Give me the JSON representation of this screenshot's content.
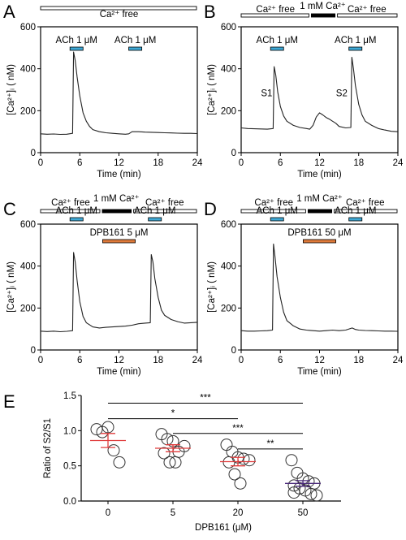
{
  "colors": {
    "ach_bar": "#3fa9d6",
    "dpb_bar": "#e07a3a",
    "calcium_bar": "#000000",
    "ca_free_bar": "#ffffff",
    "trace": "#222222",
    "mean_red": "#e03c3c",
    "mean_purple": "#4a2a7a"
  },
  "chart_data": [
    {
      "panel": "A",
      "type": "line",
      "xlabel": "Time (min)",
      "ylabel": "[Ca²⁺]ᵢ ( nM)",
      "xlim": [
        0,
        24
      ],
      "ylim": [
        0,
        600
      ],
      "xticks": [
        "0",
        "6",
        "12",
        "18",
        "24"
      ],
      "yticks": [
        "0",
        "200",
        "400",
        "600"
      ],
      "top_bars": [
        {
          "label": "Ca²⁺ free",
          "style": "ca_free",
          "start": 0,
          "end": 24
        }
      ],
      "treatments": [
        {
          "label": "ACh 1 μM",
          "color": "ach",
          "start": 4.5,
          "end": 6.5
        },
        {
          "label": "ACh 1 μM",
          "color": "ach",
          "start": 13.5,
          "end": 15.5
        }
      ],
      "trace": {
        "x": [
          0,
          1,
          2,
          3,
          4,
          4.9,
          5.05,
          5.3,
          5.6,
          6.0,
          6.5,
          7.0,
          7.5,
          8.0,
          9.0,
          10.0,
          11.0,
          12.0,
          13.0,
          13.5,
          14.0,
          15.0,
          16.0,
          17.0,
          18.0,
          19.0,
          20.0,
          21.0,
          22.0,
          23.0,
          24.0
        ],
        "y": [
          90,
          88,
          89,
          87,
          88,
          92,
          480,
          440,
          360,
          270,
          190,
          150,
          125,
          110,
          100,
          95,
          92,
          90,
          88,
          90,
          100,
          100,
          98,
          97,
          96,
          95,
          94,
          93,
          92,
          92,
          91
        ]
      },
      "peak_labels": []
    },
    {
      "panel": "B",
      "type": "line",
      "xlabel": "Time (min)",
      "ylabel": "[Ca²⁺]ᵢ ( nM)",
      "xlim": [
        0,
        24
      ],
      "ylim": [
        0,
        600
      ],
      "xticks": [
        "0",
        "6",
        "12",
        "18",
        "24"
      ],
      "yticks": [
        "0",
        "200",
        "400",
        "600"
      ],
      "top_bars": [
        {
          "label": "Ca²⁺ free",
          "style": "ca_free",
          "start": 0,
          "end": 10.5
        },
        {
          "label": "1 mM Ca²⁺",
          "style": "calcium",
          "start": 10.5,
          "end": 14.5
        },
        {
          "label": "Ca²⁺ free",
          "style": "ca_free",
          "start": 14.5,
          "end": 24
        }
      ],
      "treatments": [
        {
          "label": "ACh 1 μM",
          "color": "ach",
          "start": 4.5,
          "end": 6.5
        },
        {
          "label": "ACh 1 μM",
          "color": "ach",
          "start": 16.5,
          "end": 18.5
        }
      ],
      "trace": {
        "x": [
          0,
          1,
          2,
          3,
          4,
          4.9,
          5.05,
          5.3,
          5.6,
          6.0,
          6.5,
          7.0,
          8.0,
          9.0,
          10.0,
          10.5,
          11.0,
          11.5,
          12.0,
          12.5,
          13.0,
          13.5,
          14.0,
          14.5,
          15.0,
          16.0,
          16.8,
          16.95,
          17.2,
          17.5,
          18.0,
          18.5,
          19.0,
          20.0,
          21.0,
          22.0,
          23.0,
          24.0
        ],
        "y": [
          118,
          115,
          114,
          113,
          112,
          115,
          410,
          370,
          290,
          220,
          175,
          150,
          130,
          120,
          115,
          112,
          130,
          170,
          190,
          180,
          168,
          160,
          150,
          140,
          125,
          118,
          120,
          455,
          400,
          320,
          230,
          180,
          150,
          130,
          115,
          108,
          102,
          100
        ]
      },
      "peak_labels": [
        {
          "label": "S1",
          "x": 3.9,
          "y": 270
        },
        {
          "label": "S2",
          "x": 15.4,
          "y": 270
        }
      ]
    },
    {
      "panel": "C",
      "type": "line",
      "xlabel": "Time (min)",
      "ylabel": "[Ca²⁺]ᵢ ( nM)",
      "xlim": [
        0,
        24
      ],
      "ylim": [
        0,
        600
      ],
      "xticks": [
        "0",
        "6",
        "12",
        "18",
        "24"
      ],
      "yticks": [
        "0",
        "200",
        "400",
        "600"
      ],
      "top_bars": [
        {
          "label": "Ca²⁺ free",
          "style": "ca_free",
          "start": 0,
          "end": 9.2
        },
        {
          "label": "1 mM Ca²⁺",
          "style": "calcium",
          "start": 9.2,
          "end": 14.0
        },
        {
          "label": "Ca²⁺ free",
          "style": "ca_free",
          "start": 14.0,
          "end": 24
        }
      ],
      "treatments": [
        {
          "label": "ACh 1 μM",
          "color": "ach",
          "start": 4.5,
          "end": 6.5
        },
        {
          "label": "DPB161 5 μM",
          "color": "dpb",
          "start": 9.5,
          "end": 14.5
        },
        {
          "label": "ACh 1 μM",
          "color": "ach",
          "start": 16.5,
          "end": 18.5
        }
      ],
      "trace": {
        "x": [
          0,
          1,
          2,
          3,
          4,
          4.9,
          5.05,
          5.3,
          5.6,
          6.0,
          6.5,
          7.0,
          8.0,
          9.0,
          10.0,
          11.0,
          12.0,
          13.0,
          14.0,
          15.0,
          16.0,
          16.8,
          16.95,
          17.2,
          17.5,
          18.0,
          18.5,
          19.0,
          20.0,
          21.0,
          22.0,
          23.0,
          24.0
        ],
        "y": [
          90,
          88,
          90,
          87,
          89,
          92,
          465,
          420,
          330,
          230,
          160,
          130,
          110,
          105,
          108,
          110,
          112,
          114,
          118,
          125,
          128,
          130,
          455,
          420,
          340,
          250,
          190,
          165,
          145,
          135,
          128,
          130,
          132
        ]
      },
      "peak_labels": []
    },
    {
      "panel": "D",
      "type": "line",
      "xlabel": "Time (min)",
      "ylabel": "[Ca²⁺]ᵢ ( nM)",
      "xlim": [
        0,
        24
      ],
      "ylim": [
        0,
        600
      ],
      "xticks": [
        "0",
        "6",
        "12",
        "18",
        "24"
      ],
      "yticks": [
        "0",
        "200",
        "400",
        "600"
      ],
      "top_bars": [
        {
          "label": "Ca²⁺ free",
          "style": "ca_free",
          "start": 0,
          "end": 10.0
        },
        {
          "label": "1 mM Ca²⁺",
          "style": "calcium",
          "start": 10.0,
          "end": 14.0
        },
        {
          "label": "Ca²⁺ free",
          "style": "ca_free",
          "start": 14.0,
          "end": 24
        }
      ],
      "treatments": [
        {
          "label": "ACh 1 μM",
          "color": "ach",
          "start": 4.5,
          "end": 6.5
        },
        {
          "label": "DPB161 50 μM",
          "color": "dpb",
          "start": 9.5,
          "end": 14.5
        },
        {
          "label": "ACh 1 μM",
          "color": "ach",
          "start": 16.5,
          "end": 18.5
        }
      ],
      "trace": {
        "x": [
          0,
          1,
          2,
          3,
          4,
          4.8,
          4.95,
          5.2,
          5.5,
          6.0,
          6.5,
          7.0,
          8.0,
          9.0,
          10.0,
          11.0,
          12.0,
          13.0,
          14.0,
          15.0,
          16.0,
          17.0,
          17.5,
          18.0,
          19.0,
          20.0,
          21.0,
          22.0,
          23.0,
          24.0
        ],
        "y": [
          92,
          90,
          90,
          91,
          92,
          95,
          505,
          440,
          350,
          250,
          180,
          140,
          115,
          100,
          95,
          92,
          90,
          92,
          95,
          92,
          95,
          105,
          98,
          95,
          93,
          92,
          91,
          90,
          90,
          89
        ]
      },
      "peak_labels": []
    },
    {
      "panel": "E",
      "type": "scatter",
      "xlabel": "DPB161 (μM)",
      "ylabel": "Ratio of S2/S1",
      "categories": [
        "0",
        "5",
        "20",
        "50"
      ],
      "ylim": [
        0.0,
        1.5
      ],
      "yticks": [
        "0.0",
        "0.5",
        "1.0",
        "1.5"
      ],
      "groups": [
        {
          "category": "0",
          "points": [
            1.02,
            0.98,
            1.05,
            0.72,
            0.55
          ],
          "mean": 0.86,
          "sem": 0.1,
          "color": "red"
        },
        {
          "category": "5",
          "points": [
            0.95,
            0.88,
            0.85,
            0.7,
            0.78,
            0.68,
            0.55,
            0.55
          ],
          "mean": 0.75,
          "sem": 0.05,
          "color": "red"
        },
        {
          "category": "20",
          "points": [
            0.8,
            0.7,
            0.62,
            0.6,
            0.58,
            0.55,
            0.38,
            0.25
          ],
          "mean": 0.56,
          "sem": 0.06,
          "color": "red"
        },
        {
          "category": "50",
          "points": [
            0.58,
            0.4,
            0.32,
            0.28,
            0.25,
            0.22,
            0.18,
            0.15,
            0.1,
            0.08,
            0.12
          ],
          "mean": 0.25,
          "sem": 0.04,
          "color": "purple"
        }
      ],
      "significance": [
        {
          "from": "0",
          "to": "50",
          "label": "***",
          "y": 1.39
        },
        {
          "from": "0",
          "to": "20",
          "label": "*",
          "y": 1.17
        },
        {
          "from": "5",
          "to": "50",
          "label": "***",
          "y": 0.96
        },
        {
          "from": "20",
          "to": "50",
          "label": "**",
          "y": 0.74
        }
      ]
    }
  ]
}
